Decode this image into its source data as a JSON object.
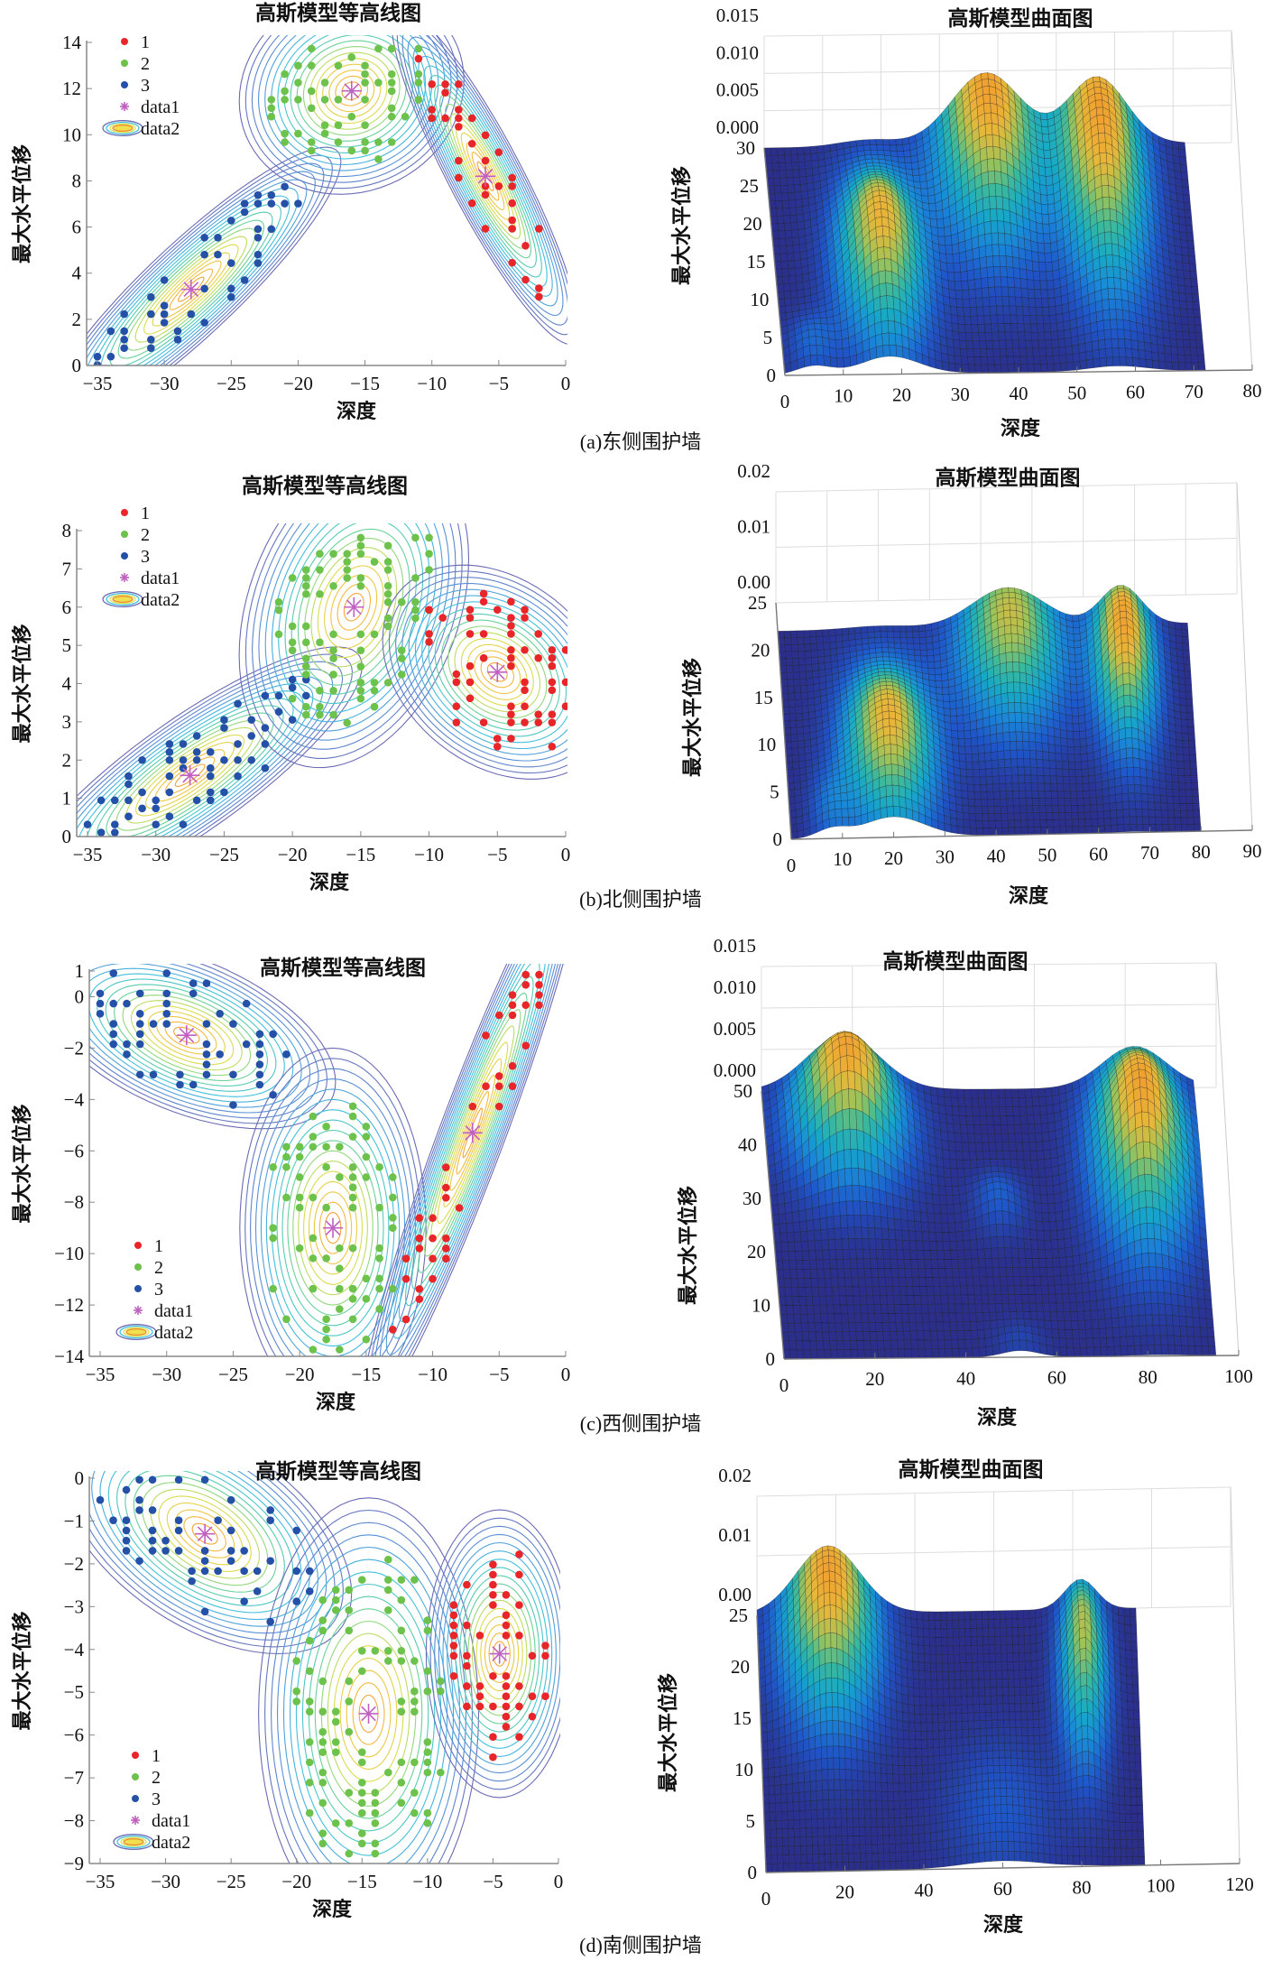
{
  "captions": [
    "(a)东侧围护墙",
    "(b)北侧围护墙",
    "(c)西侧围护墙",
    "(d)南侧围护墙"
  ],
  "legend": {
    "entries": [
      "1",
      "2",
      "3",
      "data1",
      "data2"
    ]
  },
  "colors": {
    "cluster_1": "#e8262a",
    "cluster_2": "#6cc24a",
    "cluster_3": "#2450a8",
    "center_marker": "#c060c0",
    "surface_low": "#2b2f8a",
    "surface_high": "#f0a030"
  },
  "chart_data": [
    {
      "type": "contour",
      "title": "高斯模型等高线图",
      "xlabel": "深度",
      "ylabel": "最大水平位移",
      "xlim": [
        -35,
        0
      ],
      "ylim": [
        0,
        14
      ],
      "xticks": [
        -35,
        -30,
        -25,
        -20,
        -15,
        -10,
        -5,
        0
      ],
      "yticks": [
        0,
        2,
        4,
        6,
        8,
        10,
        12,
        14
      ],
      "legend_position": "top-left",
      "components": [
        {
          "cluster": "3",
          "mean": [
            -28,
            3.3
          ],
          "sd": [
            4,
            2.2
          ],
          "rho": 0.9
        },
        {
          "cluster": "2",
          "mean": [
            -16,
            11.9
          ],
          "sd": [
            3,
            1.6
          ],
          "rho": 0.1
        },
        {
          "cluster": "1",
          "mean": [
            -6,
            8.2
          ],
          "sd": [
            2.5,
            2.6
          ],
          "rho": -0.9
        }
      ]
    },
    {
      "type": "surface",
      "title": "高斯模型曲面图",
      "xlabel": "深度",
      "ylabel": "最大水平位移",
      "xlim": [
        0,
        80
      ],
      "ylim": [
        0,
        30
      ],
      "zlim": [
        0,
        0.015
      ],
      "xticks": [
        0,
        10,
        20,
        30,
        40,
        50,
        60,
        70,
        80
      ],
      "yticks": [
        0,
        5,
        10,
        15,
        20,
        25,
        30
      ],
      "zticks": [
        "0.000",
        "0.005",
        "0.010",
        "0.015"
      ],
      "surface_x_range": [
        0,
        72
      ],
      "peaks": [
        {
          "x": 18,
          "y": 13,
          "sx": 5,
          "sy": 8,
          "z": 0.009
        },
        {
          "x": 38,
          "y": 28,
          "sx": 6,
          "sy": 9,
          "z": 0.01
        },
        {
          "x": 57,
          "y": 25,
          "sx": 5,
          "sy": 11,
          "z": 0.01
        },
        {
          "x": 5,
          "y": 3,
          "sx": 3,
          "sy": 3,
          "z": 0.002
        }
      ]
    },
    {
      "type": "contour",
      "title": "高斯模型等高线图",
      "xlabel": "深度",
      "ylabel": "最大水平位移",
      "xlim": [
        -35,
        0
      ],
      "ylim": [
        0,
        8
      ],
      "xticks": [
        -35,
        -30,
        -25,
        -20,
        -15,
        -10,
        -5,
        0
      ],
      "yticks": [
        0,
        1,
        2,
        3,
        4,
        5,
        6,
        7,
        8
      ],
      "legend_position": "top-left",
      "components": [
        {
          "cluster": "3",
          "mean": [
            -27.5,
            1.6
          ],
          "sd": [
            4.5,
            1.2
          ],
          "rho": 0.85
        },
        {
          "cluster": "2",
          "mean": [
            -15.5,
            6
          ],
          "sd": [
            3,
            1.5
          ],
          "rho": 0.3
        },
        {
          "cluster": "1",
          "mean": [
            -5,
            4.3
          ],
          "sd": [
            3,
            1
          ],
          "rho": -0.3
        }
      ]
    },
    {
      "type": "surface",
      "title": "高斯模型曲面图",
      "xlabel": "深度",
      "ylabel": "最大水平位移",
      "xlim": [
        0,
        90
      ],
      "ylim": [
        0,
        25
      ],
      "zlim": [
        0,
        0.02
      ],
      "xticks": [
        0,
        10,
        20,
        30,
        40,
        50,
        60,
        70,
        80,
        90
      ],
      "yticks": [
        0,
        5,
        10,
        15,
        20,
        25
      ],
      "zticks": [
        "0.00",
        "0.01",
        "0.02"
      ],
      "surface_x_range": [
        0,
        80
      ],
      "surface_y_range": [
        0,
        22
      ],
      "peaks": [
        {
          "x": 20,
          "y": 8,
          "sx": 6,
          "sy": 6,
          "z": 0.009
        },
        {
          "x": 45,
          "y": 19,
          "sx": 7,
          "sy": 6,
          "z": 0.008
        },
        {
          "x": 67,
          "y": 17,
          "sx": 4,
          "sy": 6,
          "z": 0.01
        },
        {
          "x": 8,
          "y": 2,
          "sx": 3,
          "sy": 3,
          "z": 0.002
        }
      ]
    },
    {
      "type": "contour",
      "title": "高斯模型等高线图",
      "xlabel": "深度",
      "ylabel": "最大水平位移",
      "xlim": [
        -35,
        0
      ],
      "ylim": [
        -14,
        1
      ],
      "xticks": [
        -35,
        -30,
        -25,
        -20,
        -15,
        -10,
        -5,
        0
      ],
      "yticks": [
        -14,
        -12,
        -10,
        -8,
        -6,
        -4,
        -2,
        0,
        1
      ],
      "legend_position": "bottom-left",
      "components": [
        {
          "cluster": "3",
          "mean": [
            -28.5,
            -1.5
          ],
          "sd": [
            4,
            1.3
          ],
          "rho": -0.5
        },
        {
          "cluster": "2",
          "mean": [
            -17.5,
            -9
          ],
          "sd": [
            2.5,
            2.5
          ],
          "rho": 0
        },
        {
          "cluster": "1",
          "mean": [
            -7,
            -5.3
          ],
          "sd": [
            3,
            4
          ],
          "rho": 0.95
        }
      ]
    },
    {
      "type": "surface",
      "title": "高斯模型曲面图",
      "xlabel": "深度",
      "ylabel": "最大水平位移",
      "xlim": [
        0,
        100
      ],
      "ylim": [
        0,
        50
      ],
      "zlim": [
        0,
        0.015
      ],
      "xticks": [
        0,
        20,
        40,
        60,
        80,
        100
      ],
      "yticks": [
        0,
        10,
        20,
        30,
        40,
        50
      ],
      "zticks": [
        "0.000",
        "0.005",
        "0.010",
        "0.015"
      ],
      "surface_x_range": [
        0,
        95
      ],
      "peaks": [
        {
          "x": 18,
          "y": 42,
          "sx": 8,
          "sy": 8,
          "z": 0.011
        },
        {
          "x": 82,
          "y": 35,
          "sx": 7,
          "sy": 12,
          "z": 0.011
        },
        {
          "x": 50,
          "y": 28,
          "sx": 4,
          "sy": 4,
          "z": 0.002
        },
        {
          "x": 52,
          "y": 2,
          "sx": 4,
          "sy": 3,
          "z": 0.001
        }
      ]
    },
    {
      "type": "contour",
      "title": "高斯模型等高线图",
      "xlabel": "深度",
      "ylabel": "最大水平位移",
      "xlim": [
        -35,
        0
      ],
      "ylim": [
        -9,
        0
      ],
      "xticks": [
        -35,
        -30,
        -25,
        -20,
        -15,
        -10,
        -5,
        0
      ],
      "yticks": [
        -9,
        -8,
        -7,
        -6,
        -5,
        -4,
        -3,
        -2,
        -1,
        0
      ],
      "legend_position": "bottom-left",
      "components": [
        {
          "cluster": "3",
          "mean": [
            -27,
            -1.3
          ],
          "sd": [
            4,
            1
          ],
          "rho": -0.5
        },
        {
          "cluster": "2",
          "mean": [
            -14.5,
            -5.5
          ],
          "sd": [
            3,
            1.8
          ],
          "rho": 0
        },
        {
          "cluster": "1",
          "mean": [
            -4.5,
            -4.1
          ],
          "sd": [
            2,
            1.2
          ],
          "rho": 0
        }
      ]
    },
    {
      "type": "surface",
      "title": "高斯模型曲面图",
      "xlabel": "深度",
      "ylabel": "最大水平位移",
      "xlim": [
        0,
        120
      ],
      "ylim": [
        0,
        25
      ],
      "zlim": [
        0,
        0.02
      ],
      "xticks": [
        0,
        20,
        40,
        60,
        80,
        100,
        120
      ],
      "yticks": [
        0,
        5,
        10,
        15,
        20,
        25
      ],
      "zticks": [
        "0.00",
        "0.01",
        "0.02"
      ],
      "surface_x_range": [
        0,
        96
      ],
      "peaks": [
        {
          "x": 18,
          "y": 22,
          "sx": 8,
          "sy": 6,
          "z": 0.013
        },
        {
          "x": 82,
          "y": 18,
          "sx": 4,
          "sy": 6,
          "z": 0.01
        },
        {
          "x": 60,
          "y": 5,
          "sx": 10,
          "sy": 5,
          "z": 0.002
        }
      ]
    }
  ]
}
